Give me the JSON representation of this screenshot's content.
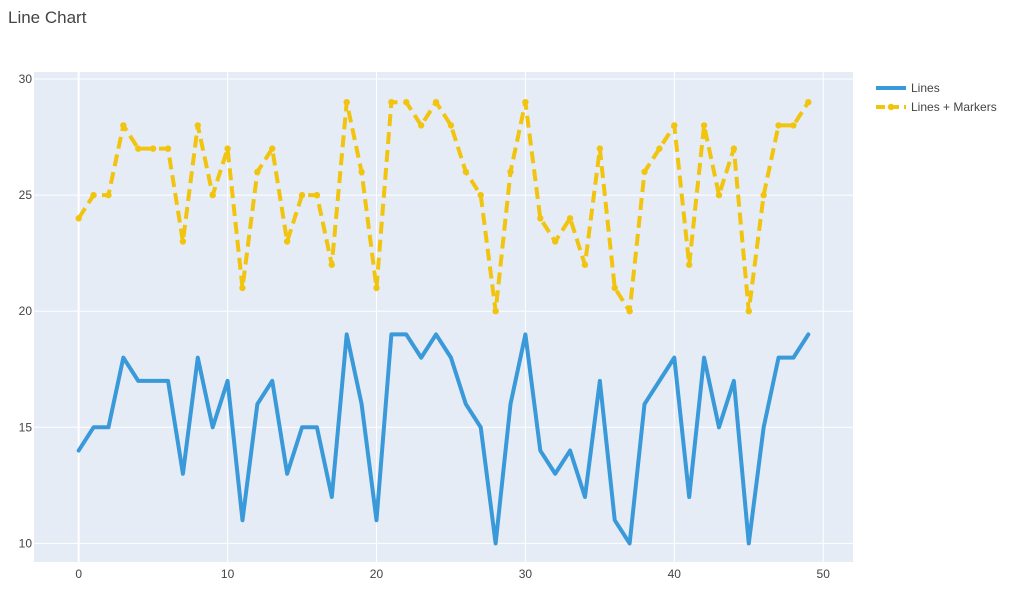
{
  "chart_data": {
    "type": "line",
    "title": "Line Chart",
    "xlabel": "",
    "ylabel": "",
    "xlim": [
      -3,
      52
    ],
    "ylim": [
      9.2,
      30.3
    ],
    "xticks": [
      0,
      10,
      20,
      30,
      40,
      50
    ],
    "yticks": [
      10,
      15,
      20,
      25,
      30
    ],
    "grid": true,
    "legend_position": "top-right",
    "background": "#e5ecf6",
    "x": [
      0,
      1,
      2,
      3,
      4,
      5,
      6,
      7,
      8,
      9,
      10,
      11,
      12,
      13,
      14,
      15,
      16,
      17,
      18,
      19,
      20,
      21,
      22,
      23,
      24,
      25,
      26,
      27,
      28,
      29,
      30,
      31,
      32,
      33,
      34,
      35,
      36,
      37,
      38,
      39,
      40,
      41,
      42,
      43,
      44,
      45,
      46,
      47,
      48,
      49
    ],
    "series": [
      {
        "name": "Lines",
        "mode": "lines",
        "color": "#3a99d9",
        "dash": "solid",
        "values": [
          14,
          15,
          15,
          18,
          17,
          17,
          17,
          13,
          18,
          15,
          17,
          11,
          16,
          17,
          13,
          15,
          15,
          12,
          19,
          16,
          11,
          19,
          19,
          18,
          19,
          18,
          16,
          15,
          10,
          16,
          19,
          14,
          13,
          14,
          12,
          17,
          11,
          10,
          16,
          17,
          18,
          12,
          18,
          15,
          17,
          10,
          15,
          18,
          18,
          19
        ]
      },
      {
        "name": "Lines + Markers",
        "mode": "lines+markers",
        "color": "#f1c40f",
        "dash": "dash",
        "values": [
          24,
          25,
          25,
          28,
          27,
          27,
          27,
          23,
          28,
          25,
          27,
          21,
          26,
          27,
          23,
          25,
          25,
          22,
          29,
          26,
          21,
          29,
          29,
          28,
          29,
          28,
          26,
          25,
          20,
          26,
          29,
          24,
          23,
          24,
          22,
          27,
          21,
          20,
          26,
          27,
          28,
          22,
          28,
          25,
          27,
          20,
          25,
          28,
          28,
          29
        ]
      }
    ]
  }
}
